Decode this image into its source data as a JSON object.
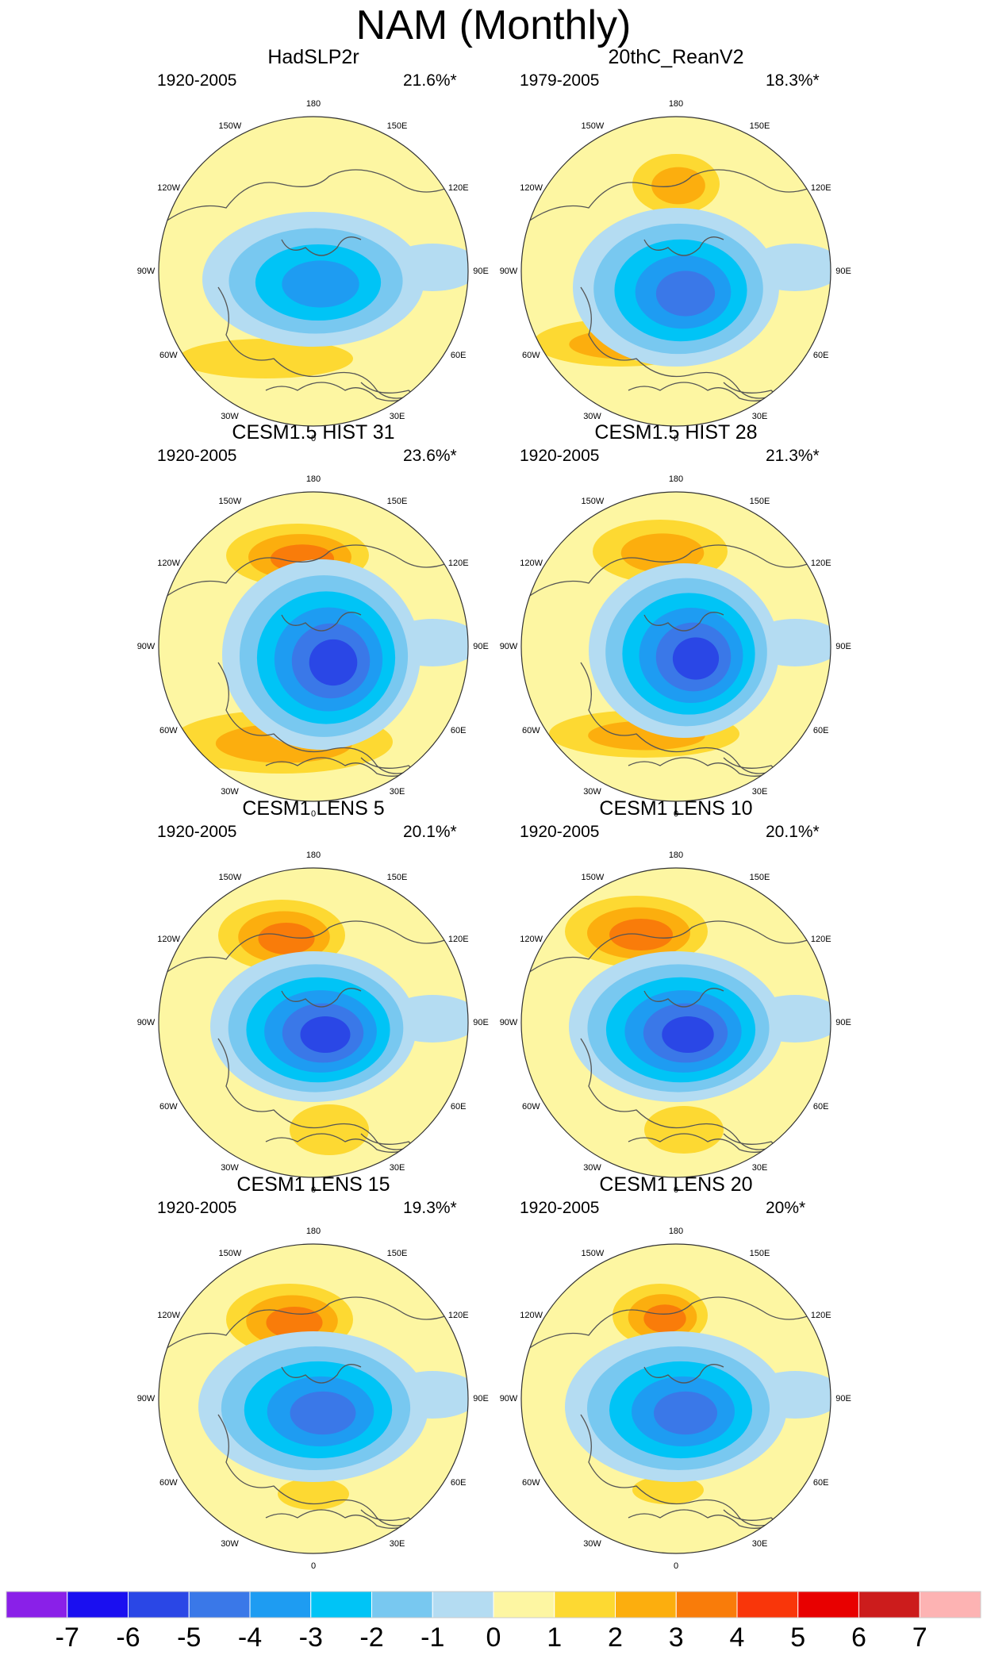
{
  "title": "NAM (Monthly)",
  "panels": [
    {
      "title": "HadSLP2r",
      "years": "1920-2005",
      "pct": "21.6%*"
    },
    {
      "title": "20thC_ReanV2",
      "years": "1979-2005",
      "pct": "18.3%*"
    },
    {
      "title": "CESM1.5 HIST 31",
      "years": "1920-2005",
      "pct": "23.6%*"
    },
    {
      "title": "CESM1.5 HIST 28",
      "years": "1920-2005",
      "pct": "21.3%*"
    },
    {
      "title": "CESM1 LENS 5",
      "years": "1920-2005",
      "pct": "20.1%*"
    },
    {
      "title": "CESM1 LENS 10",
      "years": "1920-2005",
      "pct": "20.1%*"
    },
    {
      "title": "CESM1 LENS 15",
      "years": "1920-2005",
      "pct": "19.3%*"
    },
    {
      "title": "CESM1 LENS 20",
      "years": "1920-2005",
      "pct": "20%*"
    }
  ],
  "longitude_labels": [
    "180",
    "150E",
    "120E",
    "90E",
    "60E",
    "30E",
    "0",
    "30W",
    "60W",
    "90W",
    "120W",
    "150W"
  ],
  "colorbar": {
    "labels": [
      "-7",
      "-6",
      "-5",
      "-4",
      "-3",
      "-2",
      "-1",
      "0",
      "1",
      "2",
      "3",
      "4",
      "5",
      "6",
      "7"
    ],
    "colors": [
      "#8a20e8",
      "#1a0ff0",
      "#2a47e6",
      "#3a78e8",
      "#1e9cf2",
      "#00c4f6",
      "#78c8f0",
      "#b4dcf2",
      "#fdf6a2",
      "#fdd932",
      "#fcae0e",
      "#f97c0a",
      "#f9360a",
      "#e80000",
      "#cc1c1c",
      "#fdb3b3"
    ]
  }
}
